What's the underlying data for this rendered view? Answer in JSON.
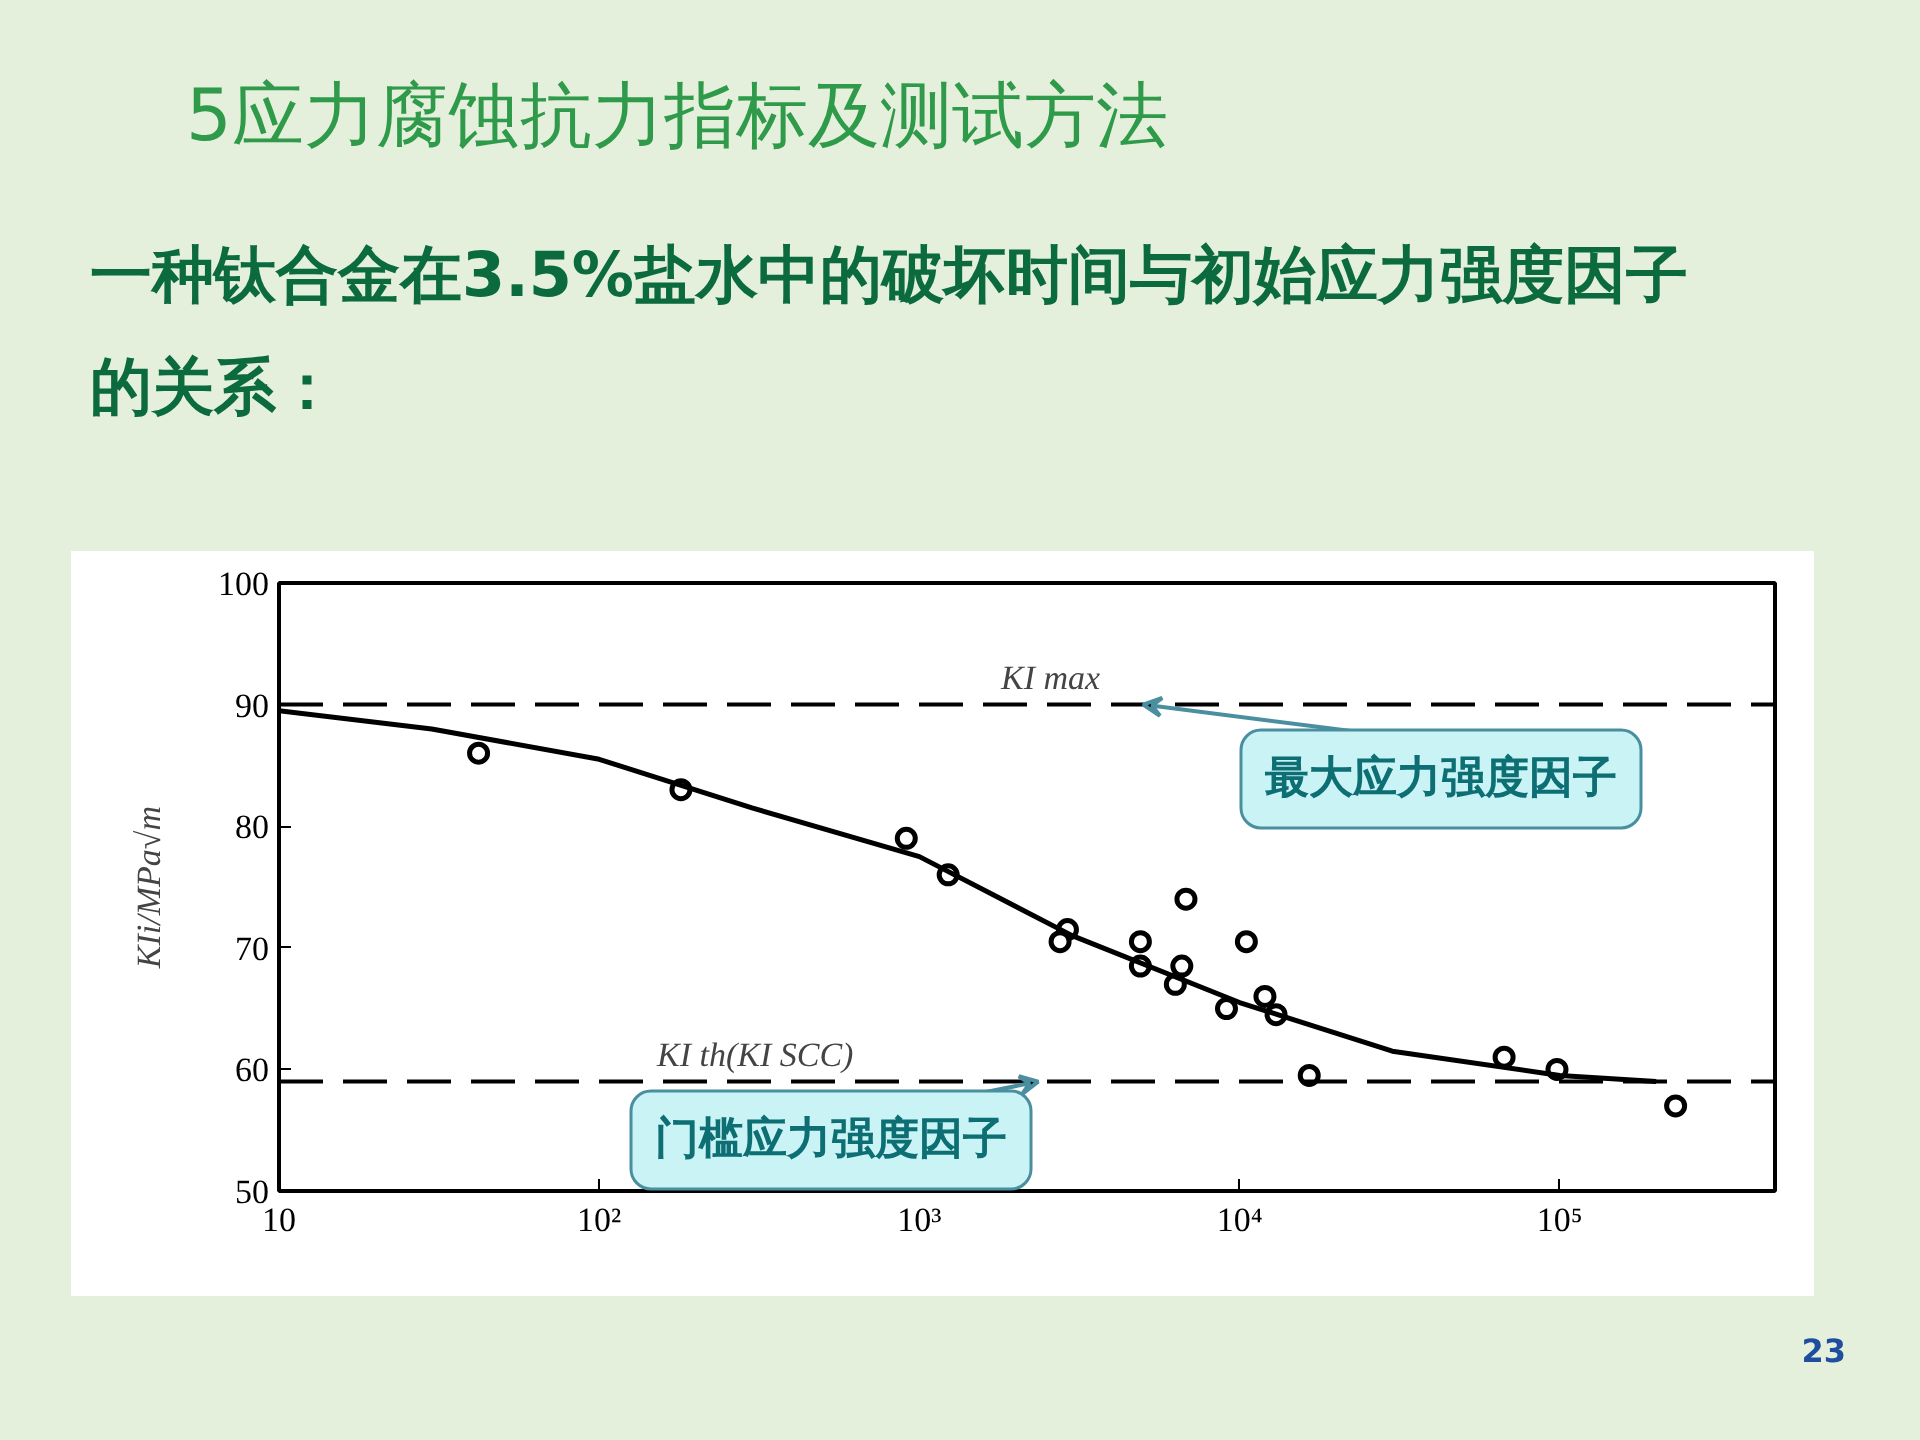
{
  "chart_data": {
    "type": "scatter",
    "title": "5应力腐蚀抗力指标及测试方法",
    "subtitle": "一种钛合金在3.5%盐水中的破坏时间与初始应力强度因子的关系：",
    "ylabel": "KIi/MPa√m",
    "xlim": [
      10,
      470000
    ],
    "ylim": [
      50,
      100
    ],
    "xticks": [
      10,
      {
        "value": 100,
        "label": "10²"
      },
      {
        "value": 1000,
        "label": "10³"
      },
      {
        "value": 10000,
        "label": "10⁴"
      },
      {
        "value": 100000,
        "label": "10⁵"
      }
    ],
    "yticks": [
      50,
      60,
      70,
      80,
      90,
      100
    ],
    "log": "x",
    "grid": false,
    "series": [
      {
        "color": "#000000",
        "marker": "circle",
        "x": [
          42,
          180,
          910,
          1230,
          2900,
          2750,
          4900,
          4900,
          6800,
          6600,
          6300,
          10500,
          9100,
          12000,
          13000,
          16500,
          67000,
          98000,
          230000
        ],
        "values": [
          86,
          83,
          79,
          76,
          71.5,
          70.5,
          70.5,
          68.5,
          74,
          68.5,
          67,
          70.5,
          65,
          66,
          64.5,
          59.5,
          61,
          60,
          57
        ]
      },
      {
        "type": "line",
        "color": "#000000",
        "x": [
          10,
          30,
          100,
          300,
          1000,
          3000,
          10000,
          30000,
          100000,
          200000
        ],
        "values": [
          89.5,
          88,
          85.5,
          81.5,
          77.5,
          71,
          65.5,
          61.5,
          59.5,
          59
        ]
      }
    ],
    "ref_lines": [
      {
        "axis": "y",
        "value": 90,
        "label": "KI max",
        "line_style": "dashed"
      },
      {
        "axis": "y",
        "value": 59,
        "label": "KI th(KI SCC)",
        "line_style": "dashed"
      }
    ],
    "annotations": [
      {
        "text": "最大应力强度因子",
        "x": 5000,
        "y": 90
      },
      {
        "text": "门槛应力强度因子",
        "x": 2350,
        "y": 59
      },
      "23"
    ]
  }
}
